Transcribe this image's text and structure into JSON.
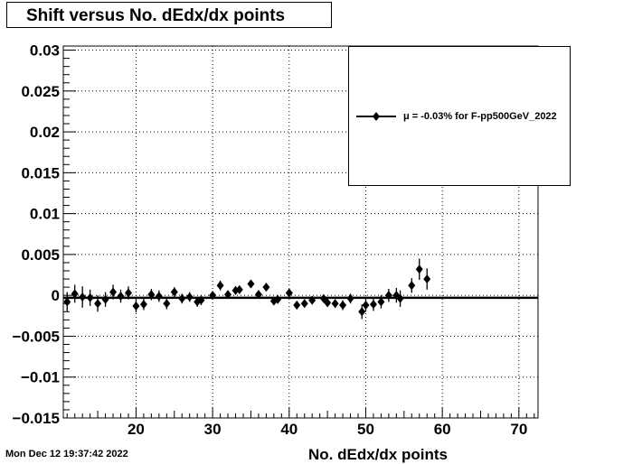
{
  "header": {
    "title": "Shift versus No. dEdx/dx points"
  },
  "footer": {
    "timestamp": "Mon Dec 12 19:37:42 2022"
  },
  "chart_data": {
    "type": "scatter",
    "title": "Shift versus No. dEdx/dx points",
    "xlabel": "No. dEdx/dx points",
    "ylabel": "",
    "xlim": [
      10.5,
      72.5
    ],
    "ylim": [
      -0.015,
      0.0305
    ],
    "x_ticks": [
      20,
      30,
      40,
      50,
      60,
      70
    ],
    "y_ticks": [
      -0.015,
      -0.01,
      -0.005,
      0,
      0.005,
      0.01,
      0.015,
      0.02,
      0.025,
      0.03
    ],
    "x_tick_labels": [
      "20",
      "30",
      "40",
      "50",
      "60",
      "70"
    ],
    "y_tick_labels": [
      "−0.015",
      "−0.01",
      "−0.005",
      "0",
      "0.005",
      "0.01",
      "0.015",
      "0.02",
      "0.025",
      "0.03"
    ],
    "grid": true,
    "legend": "top-right",
    "fit_line": {
      "y": -0.0003,
      "x_range": [
        10.5,
        72.5
      ]
    },
    "series": [
      {
        "name": "μ = -0.03% for F-pp500GeV_2022",
        "marker": "diamond",
        "points": [
          {
            "x": 11,
            "y": -0.0008,
            "err": 0.0012
          },
          {
            "x": 12,
            "y": 0.0002,
            "err": 0.0011
          },
          {
            "x": 13,
            "y": -0.0002,
            "err": 0.0013
          },
          {
            "x": 14,
            "y": -0.0003,
            "err": 0.001
          },
          {
            "x": 15,
            "y": -0.001,
            "err": 0.001
          },
          {
            "x": 16,
            "y": -0.0005,
            "err": 0.0009
          },
          {
            "x": 17,
            "y": 0.0004,
            "err": 0.0009
          },
          {
            "x": 18,
            "y": -0.0001,
            "err": 0.0008
          },
          {
            "x": 19,
            "y": 0.0003,
            "err": 0.0008
          },
          {
            "x": 20,
            "y": -0.0013,
            "err": 0.0008
          },
          {
            "x": 21,
            "y": -0.0011,
            "err": 0.0007
          },
          {
            "x": 22,
            "y": 0.0001,
            "err": 0.0007
          },
          {
            "x": 23,
            "y": -0.0001,
            "err": 0.0007
          },
          {
            "x": 24,
            "y": -0.001,
            "err": 0.0007
          },
          {
            "x": 25,
            "y": 0.0004,
            "err": 0.0006
          },
          {
            "x": 26,
            "y": -0.0004,
            "err": 0.0006
          },
          {
            "x": 27,
            "y": -0.0002,
            "err": 0.0006
          },
          {
            "x": 28,
            "y": -0.0008,
            "err": 0.0006
          },
          {
            "x": 28.5,
            "y": -0.0006,
            "err": 0.0006
          },
          {
            "x": 30,
            "y": 0.0,
            "err": 0.0005
          },
          {
            "x": 31,
            "y": 0.0012,
            "err": 0.0006
          },
          {
            "x": 32,
            "y": 0.0001,
            "err": 0.0005
          },
          {
            "x": 33,
            "y": 0.0006,
            "err": 0.0005
          },
          {
            "x": 33.5,
            "y": 0.0007,
            "err": 0.0005
          },
          {
            "x": 35,
            "y": 0.0014,
            "err": 0.0005
          },
          {
            "x": 36,
            "y": 0.0001,
            "err": 0.0005
          },
          {
            "x": 37,
            "y": 0.001,
            "err": 0.0005
          },
          {
            "x": 38,
            "y": -0.0007,
            "err": 0.0005
          },
          {
            "x": 38.5,
            "y": -0.0005,
            "err": 0.0005
          },
          {
            "x": 40,
            "y": 0.0003,
            "err": 0.0005
          },
          {
            "x": 41,
            "y": -0.0012,
            "err": 0.0005
          },
          {
            "x": 42,
            "y": -0.001,
            "err": 0.0005
          },
          {
            "x": 43,
            "y": -0.0006,
            "err": 0.0005
          },
          {
            "x": 44.5,
            "y": -0.0004,
            "err": 0.0005
          },
          {
            "x": 45,
            "y": -0.0009,
            "err": 0.0005
          },
          {
            "x": 46,
            "y": -0.001,
            "err": 0.0005
          },
          {
            "x": 47,
            "y": -0.0012,
            "err": 0.0006
          },
          {
            "x": 48,
            "y": -0.0004,
            "err": 0.0006
          },
          {
            "x": 49.5,
            "y": -0.002,
            "err": 0.0009
          },
          {
            "x": 50,
            "y": -0.0012,
            "err": 0.0008
          },
          {
            "x": 51,
            "y": -0.0011,
            "err": 0.0008
          },
          {
            "x": 52,
            "y": -0.0008,
            "err": 0.0008
          },
          {
            "x": 53,
            "y": 0.0,
            "err": 0.0008
          },
          {
            "x": 54,
            "y": 0.0,
            "err": 0.0009
          },
          {
            "x": 54.5,
            "y": -0.0004,
            "err": 0.001
          },
          {
            "x": 56,
            "y": 0.0012,
            "err": 0.0009
          },
          {
            "x": 57,
            "y": 0.0032,
            "err": 0.0013
          },
          {
            "x": 58,
            "y": 0.002,
            "err": 0.0013
          }
        ]
      }
    ]
  }
}
